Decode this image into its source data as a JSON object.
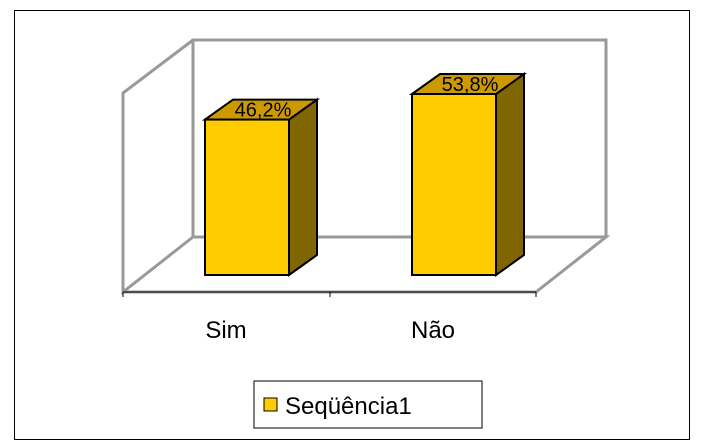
{
  "chart_data": {
    "type": "bar",
    "categories": [
      "Sim",
      "Não"
    ],
    "series": [
      {
        "name": "Seqüência1",
        "values": [
          46.2,
          53.8
        ]
      }
    ],
    "data_labels": [
      "46,2%",
      "53,8%"
    ],
    "ylim": [
      0,
      60
    ],
    "grid": false,
    "legend_position": "bottom",
    "colors": {
      "bar_front": "#FFCC00",
      "bar_side": "#7F6600",
      "bar_top": "#CC9900",
      "wall": "#999999"
    }
  }
}
